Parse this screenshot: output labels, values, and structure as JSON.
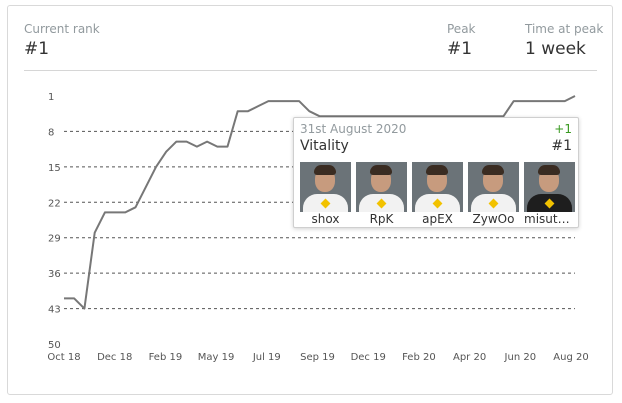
{
  "stats": {
    "current_rank_label": "Current rank",
    "current_rank_value": "#1",
    "peak_label": "Peak",
    "peak_value": "#1",
    "time_at_peak_label": "Time at peak",
    "time_at_peak_value": "1 week"
  },
  "chart_data": {
    "type": "line",
    "y_reversed": true,
    "ylim": [
      1,
      50
    ],
    "y_ticks": [
      1,
      8,
      15,
      22,
      29,
      36,
      43,
      50
    ],
    "x_tick_labels": [
      "Oct 18",
      "Dec 18",
      "Feb 19",
      "May 19",
      "Jul 19",
      "Sep 19",
      "Dec 19",
      "Feb 20",
      "Apr 20",
      "Jun 20",
      "Aug 20"
    ],
    "x_range": [
      "2018-10-01",
      "2020-08-31"
    ],
    "line_color": "#777777",
    "grid": true,
    "series": [
      {
        "points": [
          [
            "2018-10-01",
            41
          ],
          [
            "2018-10-15",
            41
          ],
          [
            "2018-10-29",
            43
          ],
          [
            "2018-11-12",
            28
          ],
          [
            "2018-11-26",
            24
          ],
          [
            "2018-12-10",
            24
          ],
          [
            "2018-12-24",
            24
          ],
          [
            "2019-01-07",
            23
          ],
          [
            "2019-01-21",
            19
          ],
          [
            "2019-02-04",
            15
          ],
          [
            "2019-02-18",
            12
          ],
          [
            "2019-03-04",
            10
          ],
          [
            "2019-03-18",
            10
          ],
          [
            "2019-04-01",
            11
          ],
          [
            "2019-04-15",
            10
          ],
          [
            "2019-04-29",
            11
          ],
          [
            "2019-05-13",
            11
          ],
          [
            "2019-05-27",
            4
          ],
          [
            "2019-06-10",
            4
          ],
          [
            "2019-06-24",
            3
          ],
          [
            "2019-07-08",
            2
          ],
          [
            "2019-07-22",
            2
          ],
          [
            "2019-08-05",
            2
          ],
          [
            "2019-08-19",
            2
          ],
          [
            "2019-09-02",
            4
          ],
          [
            "2019-09-16",
            5
          ],
          [
            "2019-09-30",
            5
          ],
          [
            "2019-10-14",
            5
          ],
          [
            "2019-10-28",
            5
          ],
          [
            "2019-11-11",
            5
          ],
          [
            "2019-11-25",
            5
          ],
          [
            "2019-12-09",
            5
          ],
          [
            "2019-12-23",
            5
          ],
          [
            "2020-01-06",
            5
          ],
          [
            "2020-01-20",
            5
          ],
          [
            "2020-02-03",
            5
          ],
          [
            "2020-02-17",
            5
          ],
          [
            "2020-03-02",
            5
          ],
          [
            "2020-03-16",
            5
          ],
          [
            "2020-03-30",
            5
          ],
          [
            "2020-04-13",
            5
          ],
          [
            "2020-04-27",
            5
          ],
          [
            "2020-05-11",
            5
          ],
          [
            "2020-05-25",
            5
          ],
          [
            "2020-06-08",
            2
          ],
          [
            "2020-06-22",
            2
          ],
          [
            "2020-07-06",
            2
          ],
          [
            "2020-07-20",
            2
          ],
          [
            "2020-08-03",
            2
          ],
          [
            "2020-08-17",
            2
          ],
          [
            "2020-08-31",
            1
          ]
        ]
      }
    ]
  },
  "tooltip": {
    "date": "31st August 2020",
    "change": "+1",
    "team": "Vitality",
    "rank": "#1",
    "players": [
      {
        "name": "shox"
      },
      {
        "name": "RpK"
      },
      {
        "name": "apEX"
      },
      {
        "name": "ZywOo"
      },
      {
        "name": "misuta..."
      }
    ]
  },
  "colors": {
    "positive_change": "#3a9a21",
    "label_gray": "#929a9e",
    "grid": "#555555"
  }
}
